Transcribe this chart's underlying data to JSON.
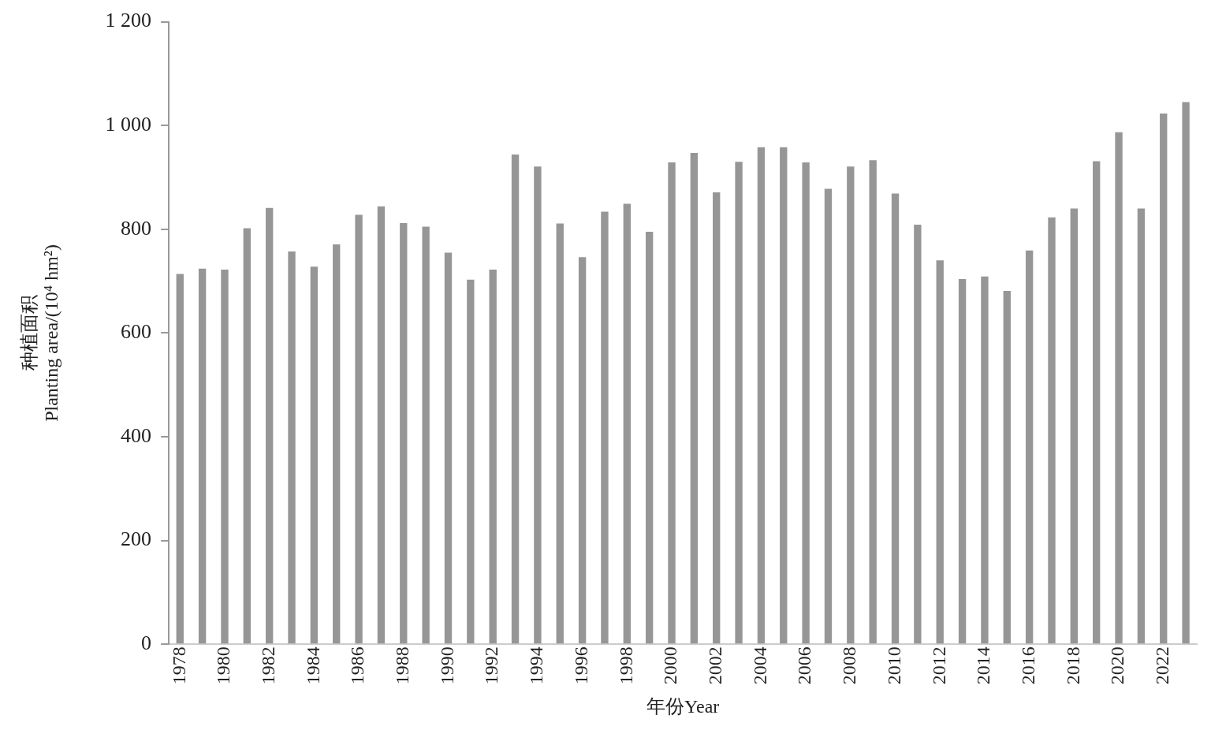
{
  "chart_data": {
    "type": "bar",
    "xlabel": "年份Year",
    "ylabel": "种植面积\nPlanting area/(10⁴ hm²)",
    "categories": [
      "1978",
      null,
      "1980",
      null,
      "1982",
      null,
      "1984",
      null,
      "1986",
      null,
      "1988",
      null,
      "1990",
      null,
      "1992",
      null,
      "1994",
      null,
      "1996",
      null,
      "1998",
      null,
      "2000",
      null,
      "2002",
      null,
      "2004",
      null,
      "2006",
      null,
      "2008",
      null,
      "2010",
      null,
      "2012",
      null,
      "2014",
      null,
      "2016",
      null,
      "2018",
      null,
      "2020",
      null,
      "2022",
      null
    ],
    "values": [
      714,
      724,
      722,
      802,
      841,
      757,
      728,
      771,
      828,
      844,
      812,
      805,
      755,
      703,
      722,
      944,
      921,
      811,
      746,
      834,
      849,
      795,
      929,
      947,
      871,
      930,
      958,
      958,
      929,
      878,
      921,
      933,
      869,
      809,
      740,
      704,
      709,
      681,
      759,
      823,
      840,
      931,
      987,
      840,
      1023,
      1045
    ],
    "color": "#969696",
    "ylim": [
      0,
      1200
    ],
    "yticks": [
      0,
      200,
      400,
      600,
      800,
      {
        "value": 1000,
        "label": "1 000"
      },
      {
        "value": 1200,
        "label": "1 200"
      }
    ],
    "grid": false,
    "legend": false
  }
}
